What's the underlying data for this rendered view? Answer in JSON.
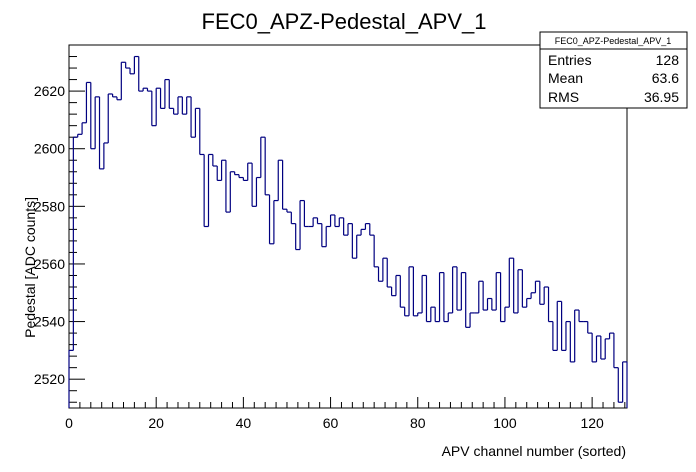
{
  "chart_data": {
    "type": "histogram",
    "title": "FEC0_APZ-Pedestal_APV_1",
    "xlabel": "APV channel number (sorted)",
    "ylabel": "Pedestal [ADC counts]",
    "xlim": [
      0,
      128
    ],
    "ylim": [
      2510,
      2636
    ],
    "x_ticks": [
      0,
      20,
      40,
      60,
      80,
      100,
      120
    ],
    "y_ticks": [
      2520,
      2540,
      2560,
      2580,
      2600,
      2620
    ],
    "bin_width": 1,
    "values": [
      2530,
      2604,
      2605,
      2609,
      2623,
      2600,
      2618,
      2593,
      2602,
      2619,
      2618,
      2617,
      2630,
      2628,
      2626,
      2632,
      2620,
      2621,
      2620,
      2608,
      2621,
      2614,
      2624,
      2614,
      2612,
      2618,
      2612,
      2618,
      2604,
      2614,
      2598,
      2573,
      2598,
      2594,
      2589,
      2596,
      2578,
      2592,
      2591,
      2590,
      2589,
      2595,
      2580,
      2590,
      2604,
      2584,
      2567,
      2582,
      2596,
      2579,
      2578,
      2574,
      2565,
      2582,
      2573,
      2573,
      2576,
      2574,
      2566,
      2573,
      2577,
      2573,
      2576,
      2570,
      2574,
      2562,
      2570,
      2572,
      2574,
      2570,
      2559,
      2554,
      2562,
      2552,
      2549,
      2556,
      2545,
      2542,
      2559,
      2542,
      2543,
      2556,
      2540,
      2545,
      2540,
      2557,
      2540,
      2543,
      2559,
      2544,
      2557,
      2538,
      2543,
      2543,
      2554,
      2544,
      2548,
      2544,
      2557,
      2540,
      2545,
      2562,
      2543,
      2558,
      2545,
      2548,
      2550,
      2554,
      2546,
      2552,
      2540,
      2530,
      2547,
      2530,
      2540,
      2526,
      2544,
      2540,
      2540,
      2536,
      2526,
      2535,
      2527,
      2534,
      2536,
      2524,
      2512,
      2526
    ]
  },
  "stats": {
    "name": "FEC0_APZ-Pedestal_APV_1",
    "entries_label": "Entries",
    "entries_value": "128",
    "mean_label": "Mean",
    "mean_value": "63.6",
    "rms_label": "RMS",
    "rms_value": "36.95"
  },
  "colors": {
    "line": "#000080",
    "axis": "#000000",
    "background": "#ffffff"
  }
}
